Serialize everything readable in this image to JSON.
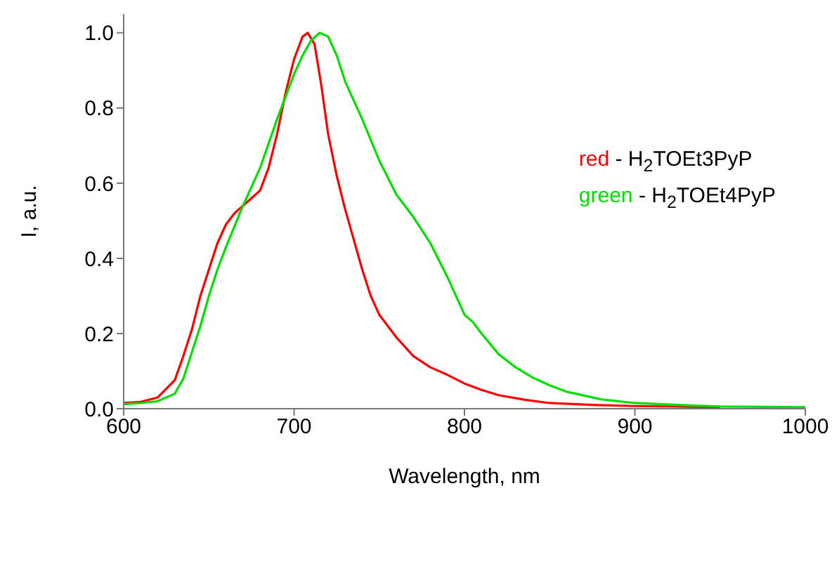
{
  "chart_data": {
    "type": "line",
    "xlabel": "Wavelength, nm",
    "ylabel": "I, a.u.",
    "xlim": [
      600,
      1000
    ],
    "xticks": [
      600,
      700,
      800,
      900,
      1000
    ],
    "ylim": [
      0,
      1.05
    ],
    "yticks": [
      {
        "value": 0,
        "label": "0.0"
      },
      0.2,
      0.4,
      0.6,
      0.8,
      {
        "value": 1,
        "label": "1.0"
      }
    ],
    "grid": false,
    "legend": "top right",
    "marker": "none",
    "line_style": "solid",
    "series": [
      {
        "name": "red - H$_{2}$TOEt3PyP",
        "color": "#ff0000",
        "x": [
          600,
          610,
          620,
          630,
          635,
          640,
          645,
          650,
          655,
          660,
          665,
          670,
          675,
          680,
          685,
          690,
          695,
          700,
          705,
          708,
          712,
          716,
          720,
          725,
          730,
          735,
          740,
          745,
          750,
          755,
          760,
          770,
          780,
          790,
          800,
          810,
          820,
          835,
          850,
          875,
          900,
          950
        ],
        "values": [
          0.015,
          0.018,
          0.03,
          0.076,
          0.14,
          0.21,
          0.3,
          0.37,
          0.44,
          0.49,
          0.52,
          0.54,
          0.56,
          0.58,
          0.64,
          0.73,
          0.84,
          0.93,
          0.99,
          1.0,
          0.97,
          0.86,
          0.73,
          0.62,
          0.53,
          0.45,
          0.37,
          0.3,
          0.25,
          0.22,
          0.19,
          0.14,
          0.11,
          0.09,
          0.067,
          0.05,
          0.036,
          0.024,
          0.015,
          0.01,
          0.007,
          0.004
        ]
      },
      {
        "name": "green - H$_{2}$TOEt4PyP",
        "color": "#00e000",
        "x": [
          600,
          610,
          620,
          630,
          635,
          640,
          645,
          650,
          655,
          660,
          670,
          680,
          690,
          700,
          705,
          710,
          715,
          720,
          725,
          730,
          740,
          750,
          760,
          770,
          780,
          790,
          800,
          805,
          810,
          820,
          830,
          840,
          850,
          860,
          880,
          900,
          925,
          950,
          1000
        ],
        "values": [
          0.012,
          0.015,
          0.02,
          0.04,
          0.08,
          0.15,
          0.22,
          0.3,
          0.37,
          0.43,
          0.54,
          0.64,
          0.77,
          0.89,
          0.94,
          0.98,
          1.0,
          0.99,
          0.94,
          0.87,
          0.77,
          0.66,
          0.57,
          0.51,
          0.44,
          0.35,
          0.25,
          0.23,
          0.2,
          0.145,
          0.11,
          0.083,
          0.062,
          0.045,
          0.025,
          0.015,
          0.01,
          0.006,
          0.004
        ]
      }
    ]
  }
}
